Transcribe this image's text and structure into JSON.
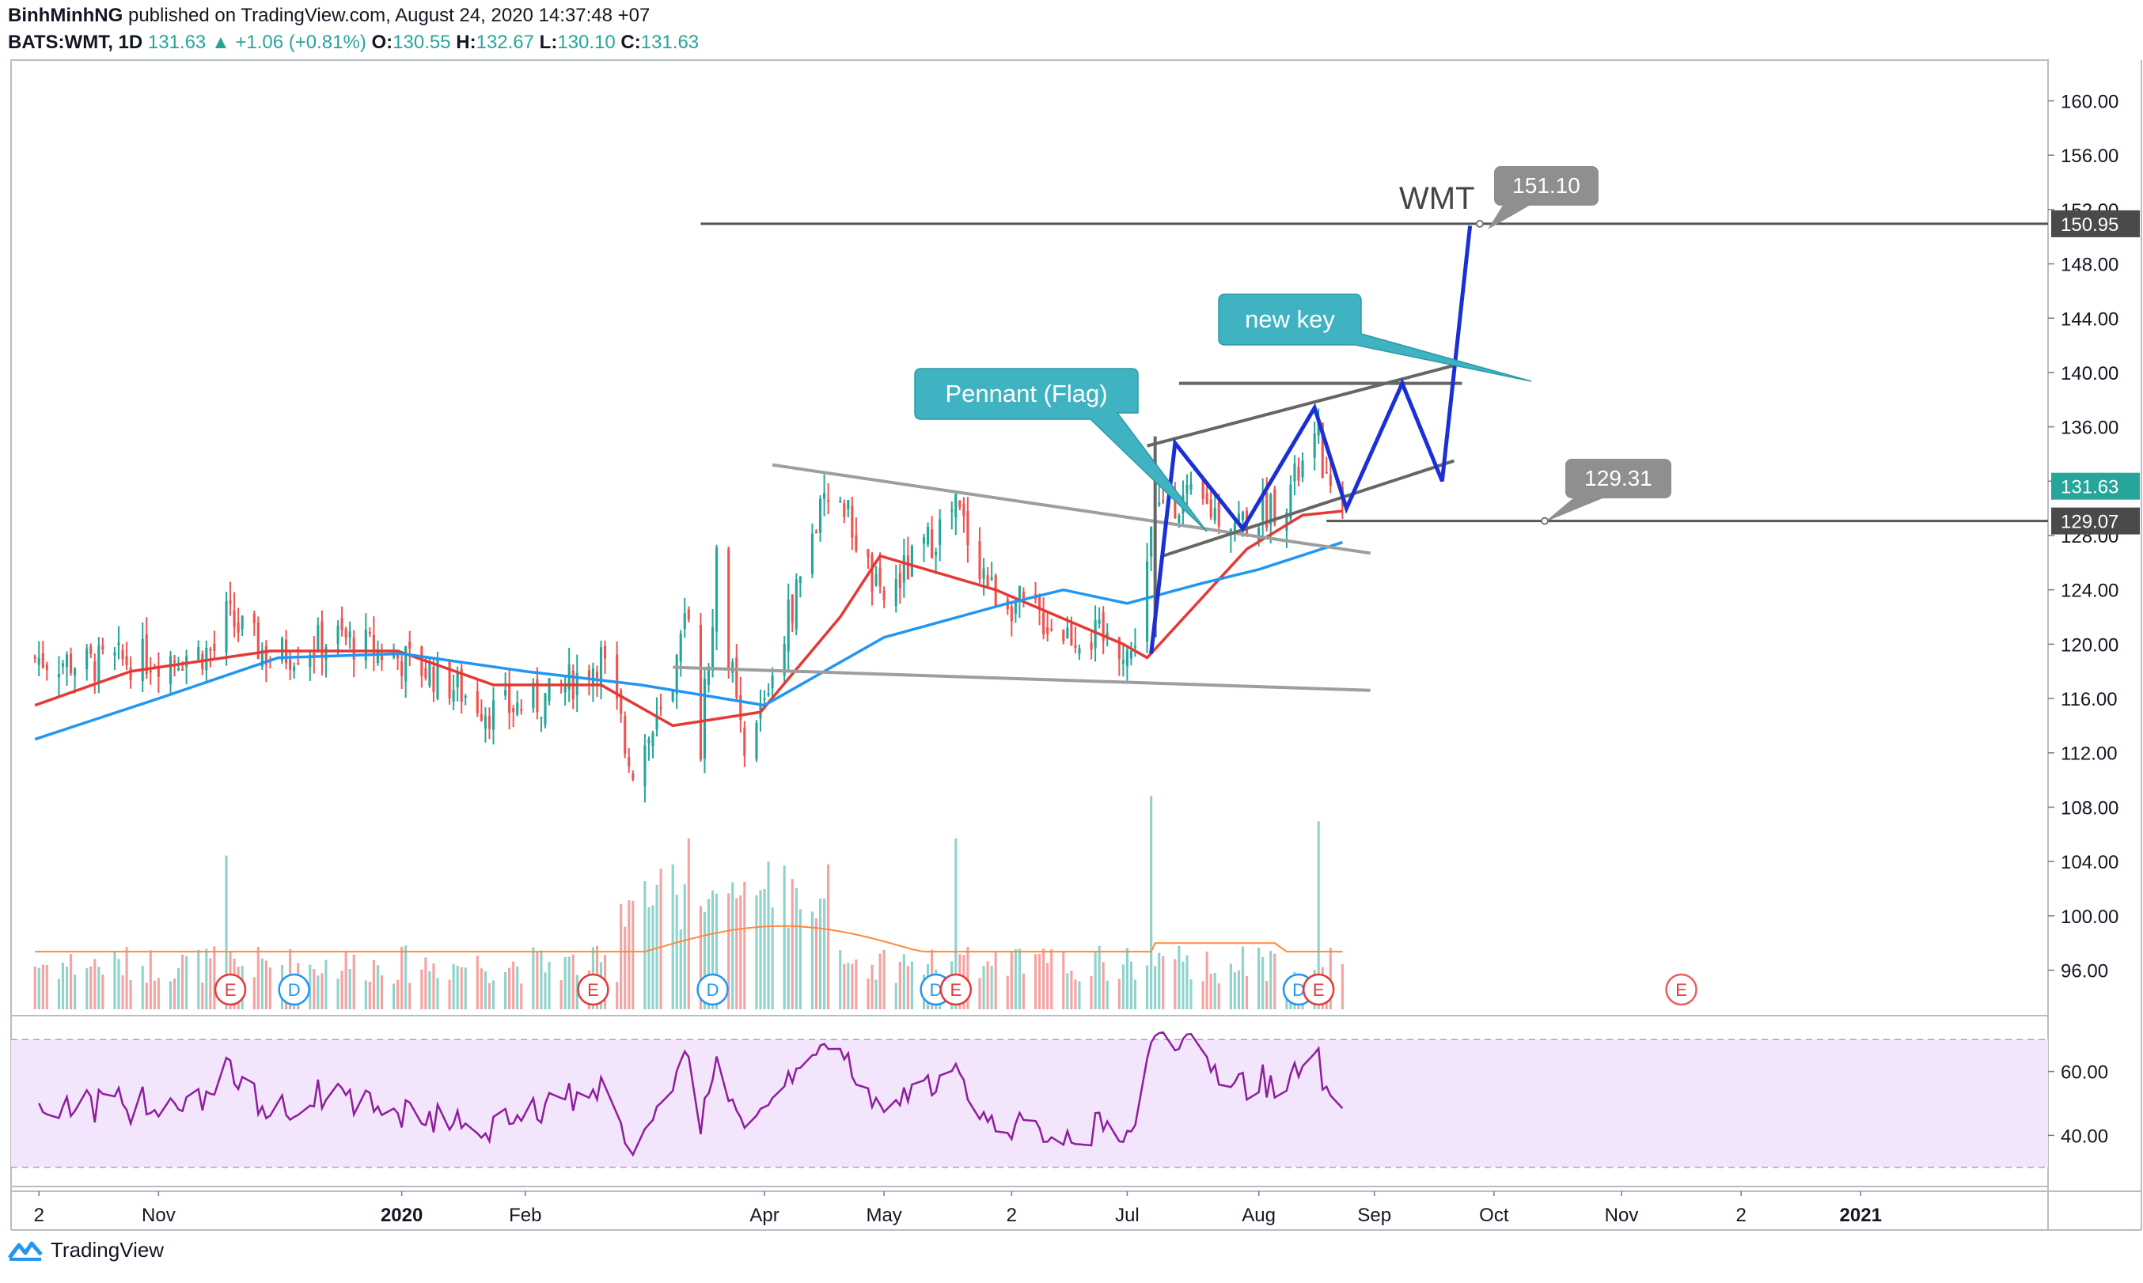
{
  "header": {
    "author": "BinhMinhNG",
    "published": "published on TradingView.com, August 24, 2020 14:37:48 +07",
    "symbol": "BATS:WMT, 1D",
    "last": "131.63",
    "change": "+1.06 (+0.81%)",
    "o_label": "O:",
    "o_val": "130.55",
    "h_label": "H:",
    "h_val": "132.67",
    "l_label": "L:",
    "l_val": "130.10",
    "c_label": "C:",
    "c_val": "131.63"
  },
  "footer": {
    "brand": "TradingView"
  },
  "colors": {
    "up": "#26a69a",
    "down": "#ef5350",
    "ma_fast": "#e53935",
    "ma_slow": "#2196f3",
    "projection": "#1a2fd6",
    "callout": "#3fb3c1",
    "gray_label": "#8f8f8f",
    "rsi_line": "#8e1e9f",
    "rsi_band": "#f3e5fb",
    "volume_ma": "#ff8a3d"
  },
  "chart_data": {
    "type": "candlestick",
    "title": "WMT",
    "price_axis": {
      "ticks": [
        "160.00",
        "156.00",
        "152.00",
        "148.00",
        "144.00",
        "140.00",
        "136.00",
        "132.00",
        "128.00",
        "124.00",
        "120.00",
        "116.00",
        "112.00",
        "108.00",
        "104.00",
        "100.00",
        "96.00"
      ],
      "range": [
        93,
        163
      ],
      "badges": [
        {
          "label": "150.95",
          "value": 150.95,
          "style": "dark"
        },
        {
          "label": "131.63",
          "value": 131.63,
          "style": "green"
        },
        {
          "label": "129.07",
          "value": 129.07,
          "style": "dark"
        }
      ]
    },
    "rsi_axis": {
      "ticks": [
        "60.00",
        "40.00"
      ],
      "band": [
        30,
        70
      ],
      "range": [
        24,
        76
      ]
    },
    "time_axis": [
      "2",
      "Nov",
      "2020",
      "Feb",
      "Apr",
      "May",
      "2",
      "Jul",
      "Aug",
      "Sep",
      "Oct",
      "Nov",
      "2",
      "2021"
    ],
    "time_axis_bold": [
      "2020",
      "2021"
    ],
    "sessions_start": "2019-10-01",
    "sessions_end": "2020-08-24",
    "price_path": [
      [
        "2019-10-01",
        119.0
      ],
      [
        "2019-10-15",
        118.5
      ],
      [
        "2019-10-31",
        119.0
      ],
      [
        "2019-11-15",
        119.5
      ],
      [
        "2019-11-18",
        122.0
      ],
      [
        "2019-11-29",
        119.0
      ],
      [
        "2019-12-16",
        120.5
      ],
      [
        "2019-12-31",
        119.0
      ],
      [
        "2020-01-08",
        118.0
      ],
      [
        "2020-01-24",
        115.0
      ],
      [
        "2020-02-07",
        116.0
      ],
      [
        "2020-02-20",
        119.0
      ],
      [
        "2020-02-28",
        111.0
      ],
      [
        "2020-03-09",
        116.0
      ],
      [
        "2020-03-13",
        123.0
      ],
      [
        "2020-03-16",
        113.0
      ],
      [
        "2020-03-20",
        126.0
      ],
      [
        "2020-03-27",
        111.0
      ],
      [
        "2020-04-03",
        118.0
      ],
      [
        "2020-04-14",
        129.0
      ],
      [
        "2020-04-20",
        131.0
      ],
      [
        "2020-04-30",
        123.0
      ],
      [
        "2020-05-19",
        130.0
      ],
      [
        "2020-05-28",
        124.0
      ],
      [
        "2020-06-15",
        121.0
      ],
      [
        "2020-06-30",
        120.0
      ],
      [
        "2020-07-02",
        119.0
      ],
      [
        "2020-07-07",
        128.0
      ],
      [
        "2020-07-10",
        131.0
      ],
      [
        "2020-07-21",
        130.0
      ],
      [
        "2020-07-31",
        129.0
      ],
      [
        "2020-08-10",
        131.0
      ],
      [
        "2020-08-18",
        135.0
      ],
      [
        "2020-08-21",
        130.2
      ],
      [
        "2020-08-24",
        131.63
      ]
    ],
    "moving_averages": [
      {
        "color": "#e53935",
        "points": [
          [
            "2019-10-01",
            115.5
          ],
          [
            "2019-10-25",
            118.0
          ],
          [
            "2019-11-29",
            119.5
          ],
          [
            "2019-12-31",
            119.5
          ],
          [
            "2020-01-24",
            117.0
          ],
          [
            "2020-02-20",
            117.0
          ],
          [
            "2020-03-09",
            114.0
          ],
          [
            "2020-03-31",
            115.0
          ],
          [
            "2020-04-20",
            122.0
          ],
          [
            "2020-04-30",
            126.5
          ],
          [
            "2020-05-29",
            124.0
          ],
          [
            "2020-06-30",
            120.0
          ],
          [
            "2020-07-06",
            119.0
          ],
          [
            "2020-07-31",
            127.0
          ],
          [
            "2020-08-14",
            129.5
          ],
          [
            "2020-08-24",
            129.8
          ]
        ]
      },
      {
        "color": "#2196f3",
        "points": [
          [
            "2019-10-01",
            113.0
          ],
          [
            "2019-11-01",
            116.0
          ],
          [
            "2019-12-01",
            119.0
          ],
          [
            "2020-01-01",
            119.3
          ],
          [
            "2020-02-01",
            118.0
          ],
          [
            "2020-03-01",
            117.0
          ],
          [
            "2020-04-01",
            115.5
          ],
          [
            "2020-05-01",
            120.5
          ],
          [
            "2020-06-01",
            123.0
          ],
          [
            "2020-06-15",
            124.0
          ],
          [
            "2020-07-01",
            123.0
          ],
          [
            "2020-07-20",
            124.5
          ],
          [
            "2020-08-03",
            125.5
          ],
          [
            "2020-08-24",
            127.5
          ]
        ]
      }
    ],
    "volume_spikes": [
      [
        "2019-11-18",
        0.72
      ],
      [
        "2020-03-02",
        0.6
      ],
      [
        "2020-03-13",
        0.8
      ],
      [
        "2020-05-19",
        0.8
      ],
      [
        "2020-07-07",
        1.0
      ],
      [
        "2020-08-18",
        0.88
      ]
    ],
    "events": [
      {
        "label": "E",
        "date": "2019-11-19",
        "future": false
      },
      {
        "label": "D",
        "date": "2019-12-05",
        "future": false
      },
      {
        "label": "E",
        "date": "2020-02-18",
        "future": false
      },
      {
        "label": "D",
        "date": "2020-03-19",
        "future": false
      },
      {
        "label": "D",
        "date": "2020-05-14",
        "future": false
      },
      {
        "label": "E",
        "date": "2020-05-19",
        "future": false
      },
      {
        "label": "D",
        "date": "2020-08-13",
        "future": false
      },
      {
        "label": "E",
        "date": "2020-08-18",
        "future": false
      },
      {
        "label": "E",
        "date": "2020-11-17",
        "future": true
      }
    ],
    "annotations": {
      "symbol_label": "WMT",
      "target_label": "151.10",
      "support_label": "129.31",
      "callout_new_key": "new key",
      "callout_pennant": "Pennant (Flag)",
      "horizontal_levels": [
        150.95,
        129.07
      ],
      "trendlines": [
        {
          "from": [
            "2020-04-03",
            133.2
          ],
          "to": [
            "2020-08-31",
            126.7
          ],
          "color": "#9e9e9e"
        },
        {
          "from": [
            "2020-03-09",
            118.3
          ],
          "to": [
            "2020-08-31",
            116.6
          ],
          "color": "#9e9e9e"
        },
        {
          "from": [
            "2020-07-06",
            134.6
          ],
          "to": [
            "2020-09-22",
            140.6
          ],
          "color": "#666666"
        },
        {
          "from": [
            "2020-07-14",
            139.2
          ],
          "to": [
            "2020-09-23",
            139.2
          ],
          "color": "#666666"
        },
        {
          "from": [
            "2020-07-10",
            126.5
          ],
          "to": [
            "2020-09-21",
            133.5
          ],
          "color": "#666666"
        }
      ],
      "projection_path": [
        [
          "2020-07-07",
          119.3
        ],
        [
          "2020-07-13",
          134.8
        ],
        [
          "2020-07-30",
          128.5
        ],
        [
          "2020-08-17",
          137.4
        ],
        [
          "2020-08-25",
          130.0
        ],
        [
          "2020-09-08",
          139.2
        ],
        [
          "2020-09-18",
          132.0
        ],
        [
          "2020-09-25",
          150.8
        ]
      ]
    }
  }
}
